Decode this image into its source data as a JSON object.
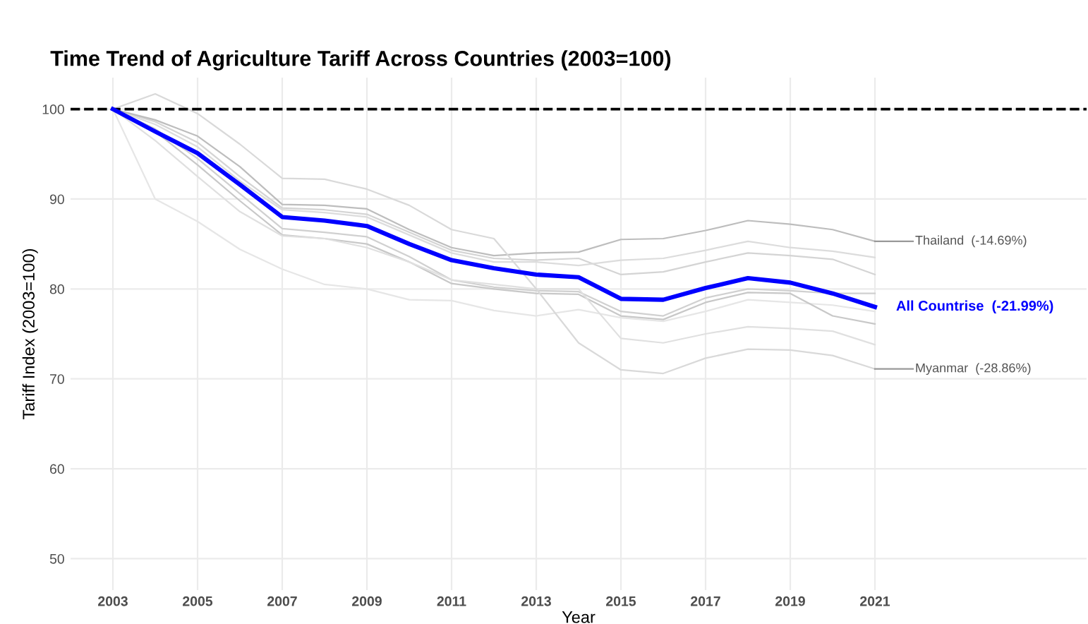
{
  "chart_data": {
    "type": "line",
    "title": "Time Trend of Agriculture Tariff Across Countries (2003=100)",
    "xlabel": "Year",
    "ylabel": "Tariff Index (2003=100)",
    "x": [
      2003,
      2004,
      2005,
      2006,
      2007,
      2008,
      2009,
      2010,
      2011,
      2012,
      2013,
      2014,
      2015,
      2016,
      2017,
      2018,
      2019,
      2020,
      2021
    ],
    "series": [
      {
        "color": "#e6e6e6",
        "values": [
          100,
          90,
          87.5,
          84.4,
          82.2,
          80.5,
          80.0,
          78.8,
          78.7,
          77.6,
          77.0,
          77.7,
          76.8,
          76.4,
          77.5,
          78.8,
          78.5,
          78.2,
          77.5
        ]
      },
      {
        "color": "#d4d4d4",
        "values": [
          100,
          98.6,
          96.3,
          92.5,
          89.0,
          88.8,
          88.3,
          86.3,
          84.3,
          83.4,
          83.2,
          83.4,
          81.6,
          81.9,
          83.0,
          84.0,
          83.7,
          83.3,
          81.6
        ]
      },
      {
        "color": "#dcdcdc",
        "values": [
          100,
          98.3,
          95.8,
          92.0,
          88.8,
          88.5,
          88.0,
          86.0,
          84.0,
          83.0,
          83.0,
          82.6,
          83.2,
          83.4,
          84.3,
          85.3,
          84.6,
          84.2,
          83.5
        ]
      },
      {
        "color": "#c8c8c8",
        "values": [
          100,
          97.5,
          93.8,
          89.8,
          86.0,
          85.6,
          85.0,
          83.0,
          80.6,
          80.0,
          79.5,
          79.4,
          77.0,
          76.6,
          78.5,
          79.6,
          79.5,
          77.0,
          76.1
        ]
      },
      {
        "color": "#d0d0d0",
        "values": [
          100,
          97.8,
          94.5,
          90.6,
          86.7,
          86.3,
          85.8,
          83.6,
          81.0,
          80.2,
          79.8,
          79.7,
          77.5,
          77.0,
          79.0,
          80.0,
          79.8,
          79.5,
          79.5
        ]
      },
      {
        "color": "#e0e0e0",
        "values": [
          100,
          96.5,
          92.5,
          88.6,
          85.9,
          85.6,
          84.6,
          83.0,
          81.0,
          80.5,
          80.0,
          80.0,
          74.5,
          74.0,
          75.0,
          75.8,
          75.6,
          75.3,
          73.8
        ]
      },
      {
        "name": "Thailand  (-14.69%)",
        "color": "#bdbdbd",
        "values": [
          100,
          98.8,
          97.0,
          93.6,
          89.4,
          89.3,
          88.9,
          86.6,
          84.6,
          83.7,
          84.0,
          84.1,
          85.5,
          85.6,
          86.5,
          87.6,
          87.2,
          86.6,
          85.3
        ]
      },
      {
        "name": "Myanmar  (-28.86%)",
        "color": "#d9d9d9",
        "values": [
          100,
          101.7,
          99.5,
          96.1,
          92.3,
          92.2,
          91.1,
          89.3,
          86.6,
          85.6,
          80.0,
          74.0,
          71.0,
          70.6,
          72.3,
          73.3,
          73.2,
          72.6,
          71.1
        ]
      },
      {
        "name": "All Countrise  (-21.99%)",
        "color": "#0000ff",
        "values": [
          100,
          97.5,
          95.1,
          91.6,
          88.0,
          87.6,
          87.0,
          85.0,
          83.2,
          82.3,
          81.6,
          81.3,
          78.9,
          78.8,
          80.1,
          81.2,
          80.7,
          79.5,
          78.0
        ]
      }
    ],
    "xlim": [
      2002,
      2026
    ],
    "xticks": [
      2003,
      2005,
      2007,
      2009,
      2011,
      2013,
      2015,
      2017,
      2019,
      2021
    ],
    "ylim": [
      46.5,
      103.5
    ],
    "yticks": [
      50,
      60,
      70,
      80,
      90,
      100
    ],
    "ref_lines": [
      {
        "axis": "y",
        "value": 100,
        "color": "#000000",
        "line_style": "dashed"
      }
    ],
    "grid": true,
    "legend": false,
    "marker": "none",
    "line_style": "solid"
  }
}
